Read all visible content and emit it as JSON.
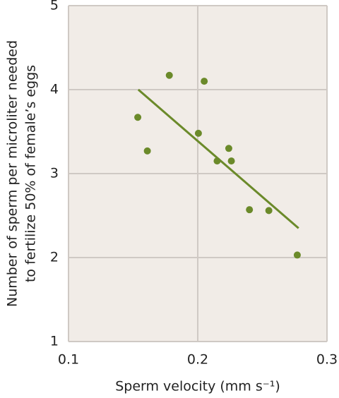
{
  "chart_data": {
    "type": "scatter",
    "xlabel": "Sperm velocity (mm s⁻¹)",
    "ylabel": [
      "Number of sperm per microliter needed",
      "to fertilize 50% of female’s eggs"
    ],
    "x": [
      0.1536,
      0.161,
      0.178,
      0.205,
      0.2005,
      0.215,
      0.224,
      0.226,
      0.24,
      0.255,
      0.277
    ],
    "values": [
      3.67,
      3.27,
      4.17,
      4.1,
      3.48,
      3.15,
      3.3,
      3.15,
      2.57,
      2.56,
      2.03
    ],
    "color": "#6b8a2a",
    "trendline": {
      "x": [
        0.154,
        0.278
      ],
      "y": [
        4.0,
        2.35
      ],
      "color": "#6b8a2a"
    },
    "xlim": [
      0.1,
      0.3
    ],
    "xticks": [
      0.1,
      0.2,
      0.3
    ],
    "ylim": [
      1,
      5
    ],
    "yticks": [
      1,
      2,
      3,
      4,
      5
    ],
    "grid": true,
    "background": "#f1ece7"
  }
}
